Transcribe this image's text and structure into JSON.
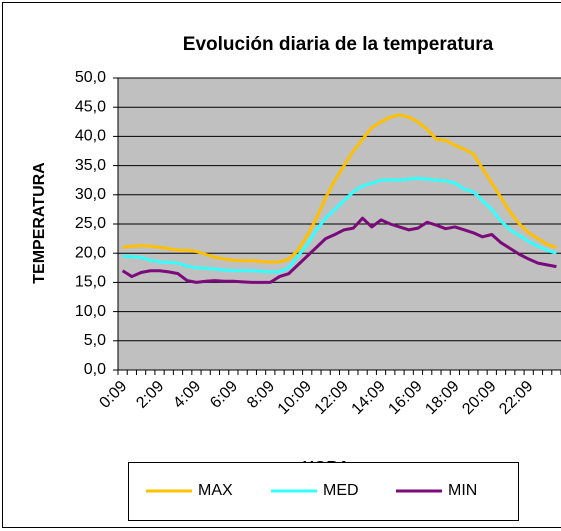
{
  "chart_data": {
    "type": "line",
    "title": "Evolución diaria de la temperatura",
    "x_label": "HORA",
    "y_label": "TEMPERATURA",
    "categories": [
      "0:09",
      null,
      null,
      null,
      "2:09",
      null,
      null,
      null,
      "4:09",
      null,
      null,
      null,
      "6:09",
      null,
      null,
      null,
      "8:09",
      null,
      null,
      null,
      "10:09",
      null,
      null,
      null,
      "12:09",
      null,
      null,
      null,
      "14:09",
      null,
      null,
      null,
      "16:09",
      null,
      null,
      null,
      "18:09",
      null,
      null,
      null,
      "20:09",
      null,
      null,
      null,
      "22:09",
      null,
      null,
      null
    ],
    "series": [
      {
        "name": "MAX",
        "color": "#ffc000",
        "values": [
          21,
          21.2,
          21.3,
          21.2,
          21,
          20.8,
          20.5,
          20.5,
          20.3,
          19.8,
          19.3,
          19,
          18.8,
          18.7,
          18.7,
          18.6,
          18.5,
          18.5,
          19,
          20.5,
          23,
          26,
          29.5,
          32.5,
          35,
          37.5,
          39.5,
          41.5,
          42.5,
          43.3,
          43.7,
          43.3,
          42.5,
          41.2,
          39.5,
          39.3,
          38.5,
          37.8,
          37,
          34.5,
          32,
          29.5,
          27,
          25,
          23.5,
          22.5,
          21.5,
          21
        ]
      },
      {
        "name": "MED",
        "color": "#33ffff",
        "values": [
          19.5,
          19.4,
          19.3,
          18.8,
          18.5,
          18.4,
          18.3,
          17.8,
          17.5,
          17.4,
          17.3,
          17.1,
          17,
          17,
          17,
          16.9,
          16.8,
          16.8,
          17.5,
          19.5,
          21.5,
          24,
          26,
          27.5,
          29,
          30.5,
          31.5,
          32,
          32.5,
          32.6,
          32.5,
          32.7,
          32.8,
          32.7,
          32.5,
          32.4,
          32,
          31,
          30.5,
          29,
          27.5,
          25.5,
          24,
          23,
          22,
          21.2,
          20.5,
          20
        ]
      },
      {
        "name": "MIN",
        "color": "#7b0a7b",
        "values": [
          17,
          16,
          16.7,
          17,
          17,
          16.8,
          16.5,
          15.3,
          15,
          15.2,
          15.3,
          15.2,
          15.2,
          15.1,
          15,
          15,
          15,
          16,
          16.5,
          18,
          19.5,
          21,
          22.5,
          23.2,
          24,
          24.3,
          26,
          24.5,
          25.7,
          25,
          24.5,
          24,
          24.3,
          25.3,
          24.8,
          24.2,
          24.5,
          24,
          23.5,
          22.8,
          23.2,
          21.8,
          20.8,
          19.8,
          19,
          18.3,
          18,
          17.7
        ]
      }
    ],
    "ylim": [
      0,
      50
    ],
    "yticks": [
      {
        "value": 0,
        "label": "0,0"
      },
      {
        "value": 5,
        "label": "5,0"
      },
      {
        "value": 10,
        "label": "10,0"
      },
      {
        "value": 15,
        "label": "15,0"
      },
      {
        "value": 20,
        "label": "20,0"
      },
      {
        "value": 25,
        "label": "25,0"
      },
      {
        "value": 30,
        "label": "30,0"
      },
      {
        "value": 35,
        "label": "35,0"
      },
      {
        "value": 40,
        "label": "40,0"
      },
      {
        "value": 45,
        "label": "45,0"
      },
      {
        "value": 50,
        "label": "50,0"
      }
    ],
    "grid": true,
    "plot_background": "#c0c0c0",
    "legend": "bottom"
  }
}
